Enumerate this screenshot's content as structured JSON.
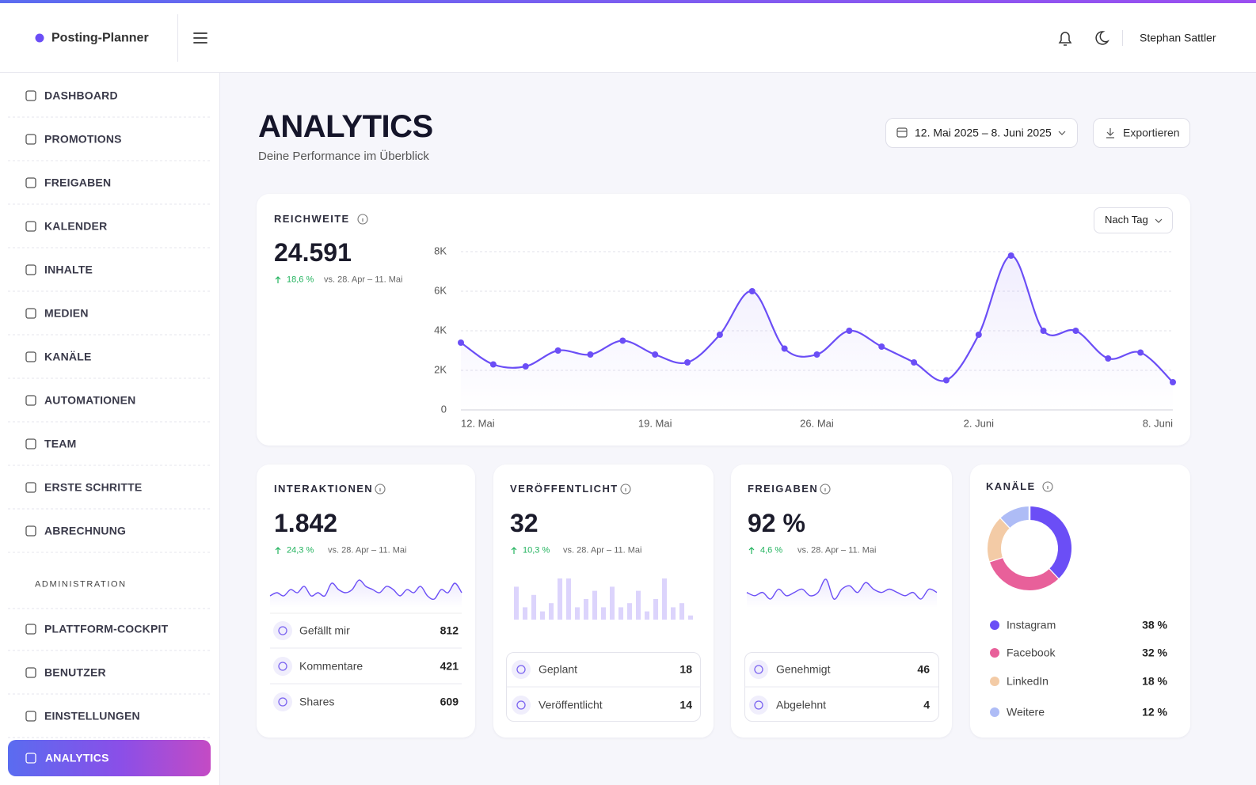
{
  "header": {
    "brand": "Posting-Planner",
    "user": "Stephan Sattler"
  },
  "nav": {
    "items": [
      "DASHBOARD",
      "PROMOTIONS",
      "FREIGABEN",
      "KALENDER",
      "INHALTE",
      "MEDIEN",
      "KANÄLE",
      "AUTOMATIONEN",
      "TEAM",
      "ERSTE SCHRITTE",
      "ABRECHNUNG"
    ],
    "section": "ADMINISTRATION",
    "admin_items": [
      "PLATTFORM-COCKPIT",
      "BENUTZER",
      "EINSTELLUNGEN"
    ],
    "active": "ANALYTICS"
  },
  "page": {
    "title": "ANALYTICS",
    "subtitle": "Deine Performance im Überblick",
    "date_range": "12. Mai 2025 – 8. Juni 2025",
    "export": "Exportieren"
  },
  "reach": {
    "title": "REICHWEITE",
    "value": "24.591",
    "change": "18,6 %",
    "compare": "vs. 28. Apr – 11. Mai",
    "granularity": "Nach Tag"
  },
  "cards": [
    {
      "title": "INTERAKTIONEN",
      "value": "1.842",
      "change": "24,3 %",
      "compare": "vs. 28. Apr – 11. Mai",
      "rows": [
        {
          "label": "Gefällt mir",
          "value": 812
        },
        {
          "label": "Kommentare",
          "value": 421
        },
        {
          "label": "Shares",
          "value": 609
        }
      ]
    },
    {
      "title": "VERÖFFENTLICHT",
      "value": "32",
      "change": "10,3 %",
      "compare": "vs. 28. Apr – 11. Mai",
      "rows": [
        {
          "label": "Geplant",
          "value": 18
        },
        {
          "label": "Veröffentlicht",
          "value": 14
        }
      ]
    },
    {
      "title": "FREIGABEN",
      "value": "92 %",
      "change": "4,6 %",
      "compare": "vs. 28. Apr – 11. Mai",
      "rows": [
        {
          "label": "Genehmigt",
          "value": 46
        },
        {
          "label": "Abgelehnt",
          "value": 4
        }
      ]
    }
  ],
  "chart_data": [
    {
      "type": "line",
      "color": "#6b4ef6",
      "grid": true,
      "categories": [
        "12. Mai",
        null,
        null,
        null,
        null,
        null,
        "19. Mai",
        null,
        null,
        null,
        null,
        "26. Mai",
        null,
        null,
        null,
        null,
        "2. Juni",
        null,
        null,
        null,
        null,
        null,
        "8. Juni"
      ],
      "values": [
        3400,
        2300,
        2200,
        3000,
        2800,
        3500,
        2800,
        2400,
        3800,
        6000,
        3100,
        2800,
        4000,
        3200,
        2400,
        1500,
        3800,
        7800,
        4000,
        4000,
        2600,
        2900,
        1400
      ],
      "ylim": [
        0,
        8000
      ],
      "yticks": [
        0,
        {
          "value": 2000,
          "label": "2K"
        },
        {
          "value": 4000,
          "label": "4K"
        },
        {
          "value": 6000,
          "label": "6K"
        },
        {
          "value": 8000,
          "label": "8K"
        }
      ]
    },
    {
      "type": "line",
      "color": "#6b4ef6",
      "values": [
        4,
        5,
        4,
        6,
        5,
        7,
        4,
        5,
        4,
        8,
        6,
        5,
        6,
        9,
        7,
        6,
        5,
        7,
        6,
        4,
        6,
        5,
        7,
        4,
        3,
        6,
        5,
        8,
        5
      ]
    },
    {
      "type": "bar",
      "color": "#dcd4fc",
      "values": [
        8,
        3,
        6,
        2,
        4,
        10,
        10,
        3,
        5,
        7,
        3,
        8,
        3,
        4,
        7,
        2,
        5,
        10,
        3,
        4,
        1
      ]
    },
    {
      "type": "line",
      "color": "#6b4ef6",
      "values": [
        5,
        4,
        5,
        3,
        6,
        4,
        5,
        6,
        4,
        5,
        9,
        3,
        6,
        7,
        5,
        8,
        6,
        5,
        6,
        5,
        4,
        5,
        3,
        6,
        5
      ]
    },
    {
      "type": "pie",
      "title": "KANÄLE",
      "categories": [
        "Instagram",
        "Facebook",
        "LinkedIn",
        "Weitere"
      ],
      "values": [
        38,
        32,
        18,
        12
      ],
      "value_labels": [
        "38 %",
        "32 %",
        "18 %",
        "12 %"
      ],
      "colors": [
        "#6b4ef6",
        "#e8609a",
        "#f3cba6",
        "#aebcf6"
      ]
    }
  ]
}
